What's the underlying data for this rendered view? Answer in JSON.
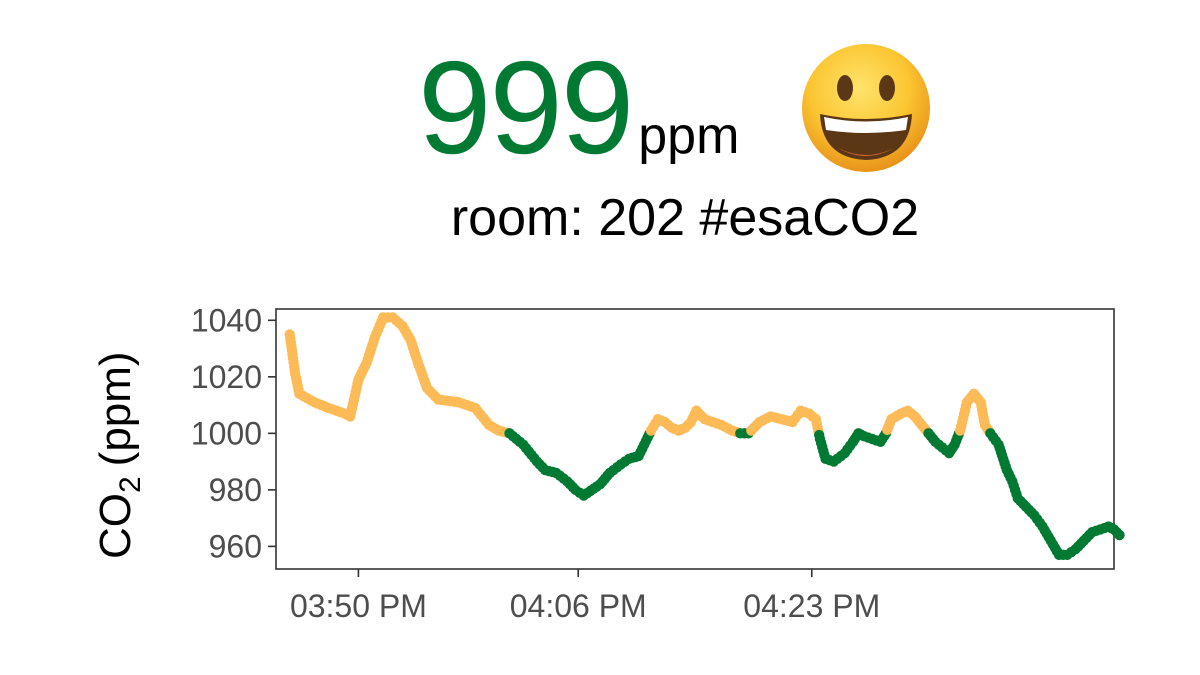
{
  "header": {
    "value": "999",
    "unit": "ppm",
    "status_icon": "grinning-face-icon",
    "value_color": "#007a33",
    "room_label": "room: 202 #esaCO2"
  },
  "colors": {
    "below_threshold": "#007a33",
    "above_threshold": "#fdbb58",
    "axis": "#333333",
    "tick_text": "#4d4d4d"
  },
  "chart_data": {
    "type": "scatter",
    "ylabel_main": "CO",
    "ylabel_sub": "2",
    "ylabel_tail": "(ppm)",
    "xlabel": "",
    "threshold": 1000,
    "ylim": [
      952,
      1044
    ],
    "xlim": [
      -6.0,
      55.0
    ],
    "yticks": [
      960,
      980,
      1000,
      1020,
      1040
    ],
    "xticks": [
      {
        "value": 0.0,
        "label": "03:50 PM"
      },
      {
        "value": 16.0,
        "label": "04:06 PM"
      },
      {
        "value": 33.0,
        "label": "04:23 PM"
      }
    ],
    "x_unit": "minutes after 03:50 PM",
    "anchors": [
      [
        -5.0,
        1035
      ],
      [
        -4.6,
        1021
      ],
      [
        -4.3,
        1014
      ],
      [
        -3.2,
        1011
      ],
      [
        -2.2,
        1009
      ],
      [
        -1.0,
        1007
      ],
      [
        -0.6,
        1006
      ],
      [
        0.0,
        1019
      ],
      [
        0.6,
        1025
      ],
      [
        1.2,
        1034
      ],
      [
        1.8,
        1041
      ],
      [
        2.5,
        1041
      ],
      [
        3.2,
        1038
      ],
      [
        3.8,
        1033
      ],
      [
        4.4,
        1024
      ],
      [
        5.0,
        1016
      ],
      [
        5.8,
        1012
      ],
      [
        7.3,
        1011
      ],
      [
        8.5,
        1009
      ],
      [
        9.5,
        1003
      ],
      [
        10.2,
        1001
      ],
      [
        11.0,
        1000
      ],
      [
        12.0,
        996
      ],
      [
        13.0,
        990
      ],
      [
        13.6,
        987
      ],
      [
        14.4,
        986
      ],
      [
        15.2,
        983
      ],
      [
        15.8,
        980
      ],
      [
        16.4,
        978
      ],
      [
        17.6,
        982
      ],
      [
        18.3,
        986
      ],
      [
        19.1,
        989
      ],
      [
        19.7,
        991
      ],
      [
        20.4,
        992
      ],
      [
        20.8,
        996
      ],
      [
        21.3,
        1001
      ],
      [
        21.8,
        1005
      ],
      [
        22.3,
        1004
      ],
      [
        22.8,
        1002
      ],
      [
        23.3,
        1001
      ],
      [
        23.8,
        1002
      ],
      [
        24.2,
        1004
      ],
      [
        24.6,
        1008
      ],
      [
        25.2,
        1005
      ],
      [
        25.8,
        1004
      ],
      [
        26.4,
        1003
      ],
      [
        27.2,
        1001
      ],
      [
        27.8,
        1000
      ],
      [
        28.4,
        1000
      ],
      [
        29.2,
        1004
      ],
      [
        30.0,
        1006
      ],
      [
        30.8,
        1005
      ],
      [
        31.6,
        1004
      ],
      [
        32.2,
        1008
      ],
      [
        32.8,
        1007
      ],
      [
        33.3,
        1005
      ],
      [
        33.6,
        998
      ],
      [
        34.0,
        991
      ],
      [
        34.6,
        990
      ],
      [
        35.4,
        993
      ],
      [
        36.0,
        997
      ],
      [
        36.4,
        1000
      ],
      [
        36.8,
        999
      ],
      [
        37.4,
        998
      ],
      [
        38.0,
        997
      ],
      [
        38.4,
        1000
      ],
      [
        38.8,
        1005
      ],
      [
        39.5,
        1007
      ],
      [
        40.0,
        1008
      ],
      [
        40.5,
        1006
      ],
      [
        41.0,
        1003
      ],
      [
        41.5,
        1000
      ],
      [
        42.0,
        997
      ],
      [
        42.5,
        995
      ],
      [
        43.0,
        993
      ],
      [
        43.4,
        996
      ],
      [
        43.8,
        1001
      ],
      [
        44.3,
        1011
      ],
      [
        44.8,
        1014
      ],
      [
        45.3,
        1011
      ],
      [
        45.6,
        1003
      ],
      [
        46.0,
        1000
      ],
      [
        46.6,
        996
      ],
      [
        47.2,
        987
      ],
      [
        47.6,
        983
      ],
      [
        48.0,
        977
      ],
      [
        48.6,
        974
      ],
      [
        49.2,
        971
      ],
      [
        49.8,
        967
      ],
      [
        50.4,
        962
      ],
      [
        51.0,
        957
      ],
      [
        51.6,
        957
      ],
      [
        52.2,
        959
      ],
      [
        52.8,
        962
      ],
      [
        53.4,
        965
      ],
      [
        54.0,
        966
      ],
      [
        54.6,
        967
      ],
      [
        55.0,
        966
      ],
      [
        55.4,
        964
      ]
    ]
  }
}
